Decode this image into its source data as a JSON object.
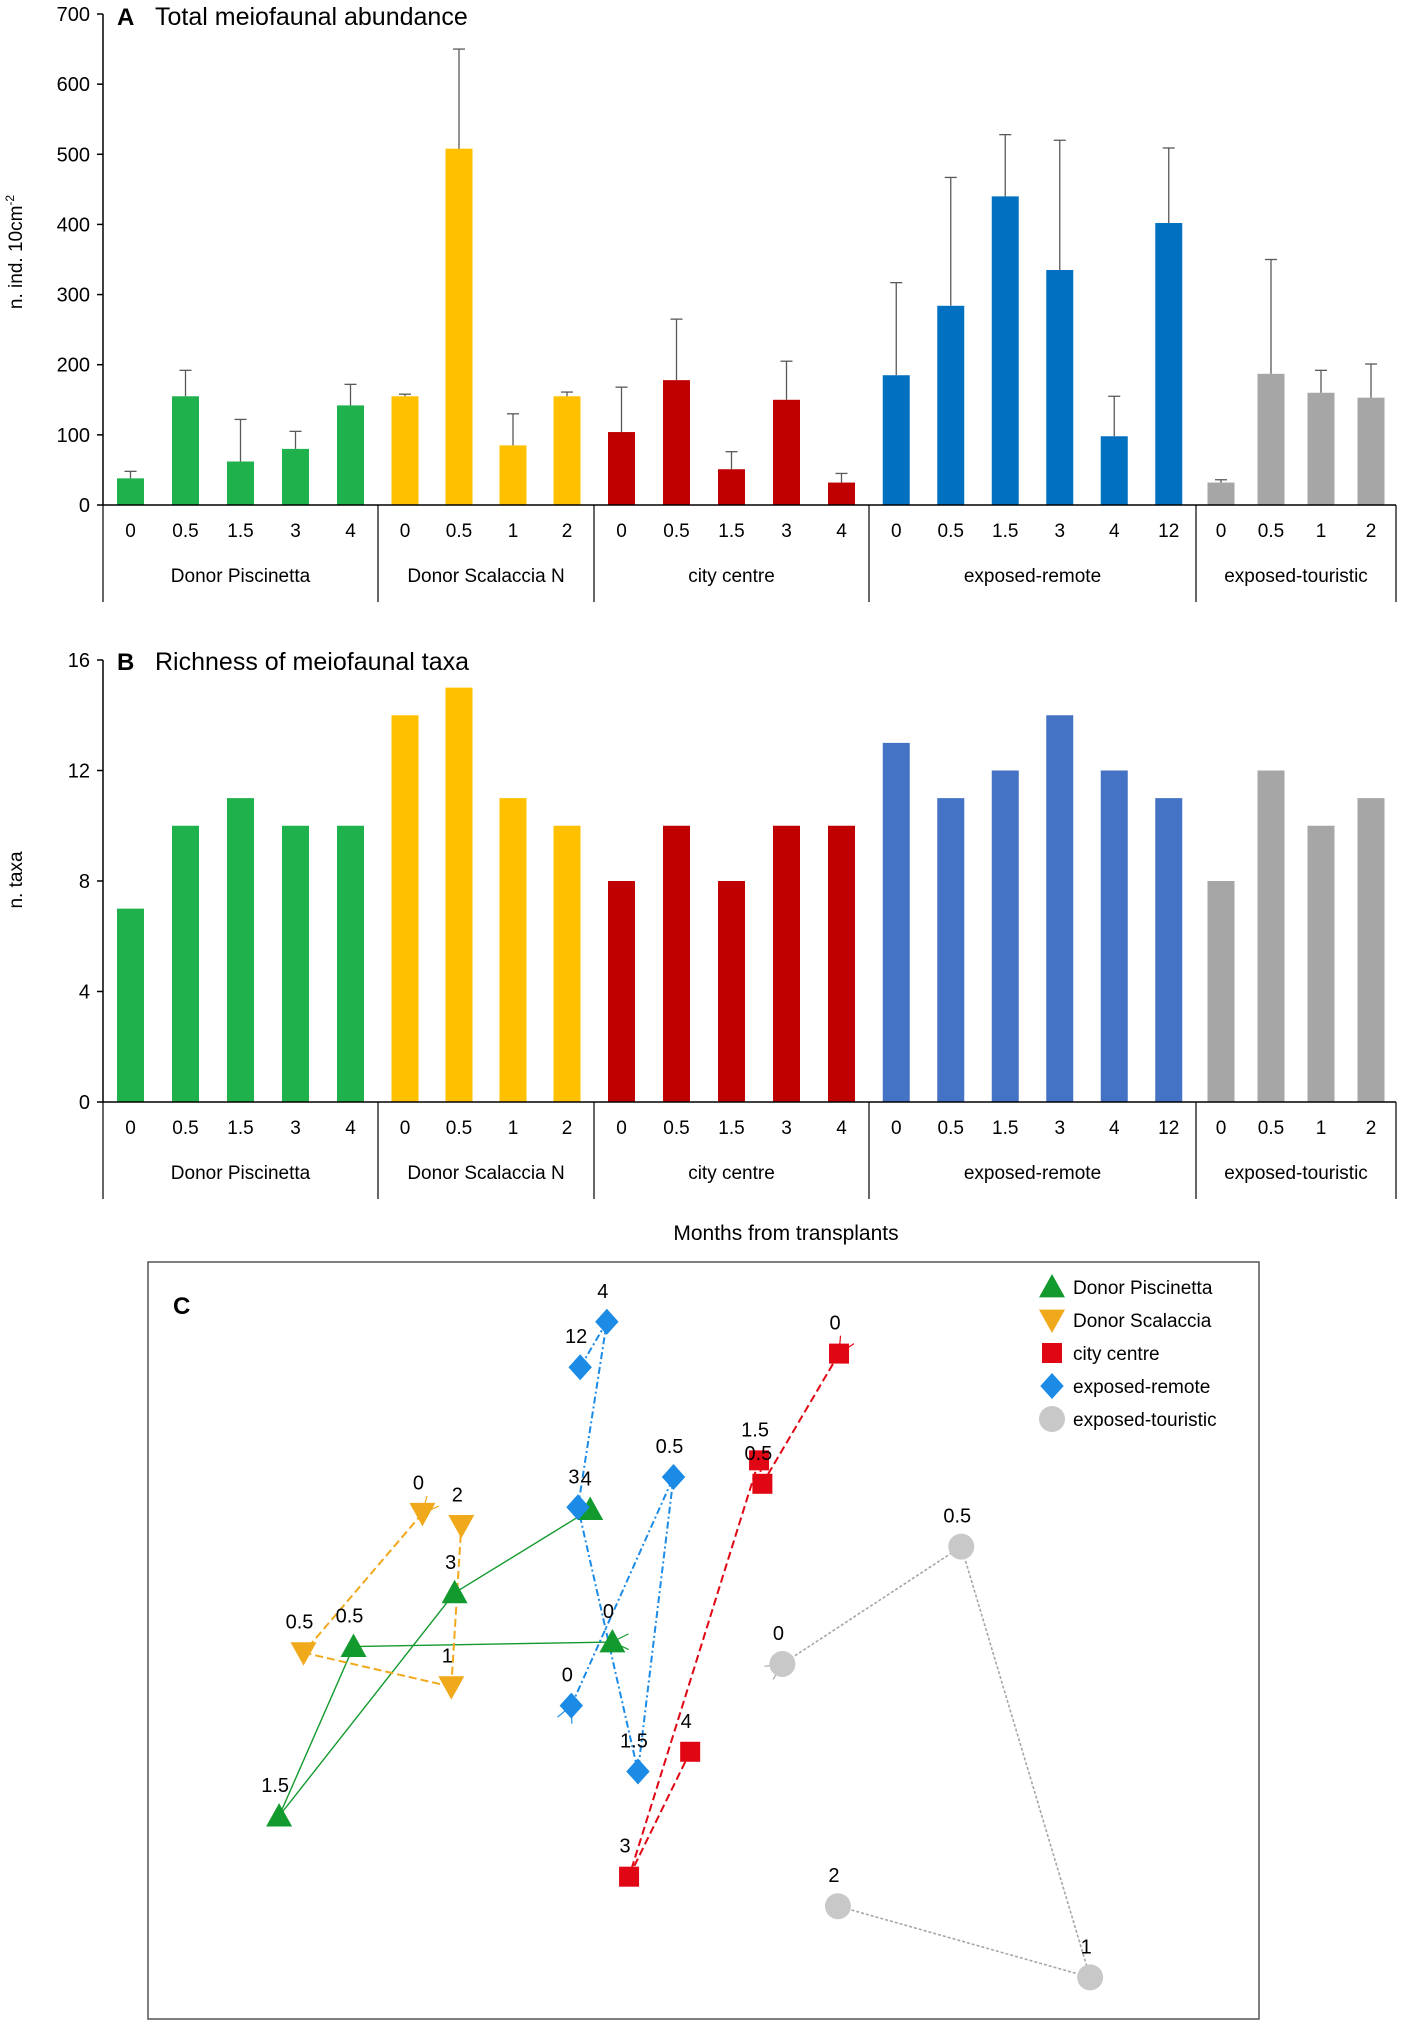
{
  "figure": {
    "xlabel_shared": "Months from transplants"
  },
  "chart_data": [
    {
      "id": "A",
      "type": "bar",
      "panel_letter": "A",
      "title": "Total meiofaunal abundance",
      "ylabel": "n. ind. 10cm",
      "ylabel_sup": "-2",
      "ylim": [
        0,
        700
      ],
      "yticks": [
        0,
        100,
        200,
        300,
        400,
        500,
        600,
        700
      ],
      "groups": [
        {
          "name": "Donor Piscinetta",
          "color": "#1fb14b",
          "categories": [
            "0",
            "0.5",
            "1.5",
            "3",
            "4"
          ],
          "values": [
            38,
            155,
            62,
            80,
            142
          ],
          "errors": [
            10,
            37,
            60,
            25,
            30
          ]
        },
        {
          "name": "Donor Scalaccia N",
          "color": "#ffc000",
          "categories": [
            "0",
            "0.5",
            "1",
            "2"
          ],
          "values": [
            155,
            508,
            85,
            155
          ],
          "errors": [
            3,
            142,
            45,
            6
          ]
        },
        {
          "name": "city centre",
          "color": "#c00000",
          "categories": [
            "0",
            "0.5",
            "1.5",
            "3",
            "4"
          ],
          "values": [
            104,
            178,
            51,
            150,
            32
          ],
          "errors": [
            64,
            87,
            25,
            55,
            13
          ]
        },
        {
          "name": "exposed-remote",
          "color": "#0070c0",
          "categories": [
            "0",
            "0.5",
            "1.5",
            "3",
            "4",
            "12"
          ],
          "values": [
            185,
            284,
            440,
            335,
            98,
            402
          ],
          "errors": [
            132,
            183,
            88,
            185,
            57,
            107
          ]
        },
        {
          "name": "exposed-touristic",
          "color": "#a6a6a6",
          "categories": [
            "0",
            "0.5",
            "1",
            "2"
          ],
          "values": [
            32,
            187,
            160,
            153
          ],
          "errors": [
            4,
            163,
            32,
            48
          ]
        }
      ]
    },
    {
      "id": "B",
      "type": "bar",
      "panel_letter": "B",
      "title": "Richness of meiofaunal taxa",
      "ylabel": "n. taxa",
      "ylim": [
        0,
        16
      ],
      "yticks": [
        0,
        4,
        8,
        12,
        16
      ],
      "groups": [
        {
          "name": "Donor Piscinetta",
          "color": "#1fb14b",
          "categories": [
            "0",
            "0.5",
            "1.5",
            "3",
            "4"
          ],
          "values": [
            7,
            10,
            11,
            10,
            10
          ]
        },
        {
          "name": "Donor Scalaccia N",
          "color": "#ffc000",
          "categories": [
            "0",
            "0.5",
            "1",
            "2"
          ],
          "values": [
            14,
            15,
            11,
            10
          ]
        },
        {
          "name": "city centre",
          "color": "#c00000",
          "categories": [
            "0",
            "0.5",
            "1.5",
            "3",
            "4"
          ],
          "values": [
            8,
            10,
            8,
            10,
            10
          ]
        },
        {
          "name": "exposed-remote",
          "color": "#4472c4",
          "categories": [
            "0",
            "0.5",
            "1.5",
            "3",
            "4",
            "12"
          ],
          "values": [
            13,
            11,
            12,
            14,
            12,
            11
          ]
        },
        {
          "name": "exposed-touristic",
          "color": "#a6a6a6",
          "categories": [
            "0",
            "0.5",
            "1",
            "2"
          ],
          "values": [
            8,
            12,
            10,
            11
          ]
        }
      ]
    },
    {
      "id": "C",
      "type": "scatter",
      "panel_letter": "C",
      "title": "",
      "xlim": [
        0,
        100
      ],
      "ylim": [
        0,
        100
      ],
      "grid": false,
      "legend_position": "top-right",
      "series": [
        {
          "name": "Donor Piscinetta",
          "color": "#129a2e",
          "marker": "triangle-up",
          "line": "solid",
          "points": [
            {
              "label": "0",
              "x": 41.8,
              "y": 49.8
            },
            {
              "label": "0.5",
              "x": 18.5,
              "y": 49.2
            },
            {
              "label": "1.5",
              "x": 11.8,
              "y": 26.8
            },
            {
              "label": "3",
              "x": 27.6,
              "y": 56.3
            },
            {
              "label": "4",
              "x": 39.8,
              "y": 67.3
            }
          ]
        },
        {
          "name": "Donor Scalaccia",
          "color": "#f0a91b",
          "marker": "triangle-down",
          "line": "dashed",
          "points": [
            {
              "label": "0",
              "x": 24.7,
              "y": 66.8
            },
            {
              "label": "0.5",
              "x": 14.0,
              "y": 48.4
            },
            {
              "label": "1",
              "x": 27.3,
              "y": 43.9
            },
            {
              "label": "2",
              "x": 28.2,
              "y": 65.2
            }
          ]
        },
        {
          "name": "city centre",
          "color": "#e00613",
          "marker": "square",
          "line": "dashed",
          "points": [
            {
              "label": "0",
              "x": 62.2,
              "y": 87.9
            },
            {
              "label": "0.5",
              "x": 55.3,
              "y": 70.7
            },
            {
              "label": "1.5",
              "x": 55.0,
              "y": 73.8
            },
            {
              "label": "3",
              "x": 43.3,
              "y": 18.8
            },
            {
              "label": "4",
              "x": 48.8,
              "y": 35.3
            }
          ]
        },
        {
          "name": "exposed-remote",
          "color": "#1b8be6",
          "marker": "diamond",
          "line": "dashdot",
          "points": [
            {
              "label": "0",
              "x": 38.1,
              "y": 41.4
            },
            {
              "label": "0.5",
              "x": 47.3,
              "y": 71.6
            },
            {
              "label": "1.5",
              "x": 44.1,
              "y": 32.7
            },
            {
              "label": "3",
              "x": 38.7,
              "y": 67.6
            },
            {
              "label": "4",
              "x": 41.3,
              "y": 92.1
            },
            {
              "label": "12",
              "x": 38.9,
              "y": 86.1
            }
          ]
        },
        {
          "name": "exposed-touristic",
          "color": "#c8c8c8",
          "marker": "circle",
          "line": "dotted",
          "points": [
            {
              "label": "0",
              "x": 57.1,
              "y": 46.9
            },
            {
              "label": "0.5",
              "x": 73.2,
              "y": 62.4
            },
            {
              "label": "1",
              "x": 84.8,
              "y": 5.5
            },
            {
              "label": "2",
              "x": 62.1,
              "y": 14.9
            }
          ]
        }
      ]
    }
  ]
}
